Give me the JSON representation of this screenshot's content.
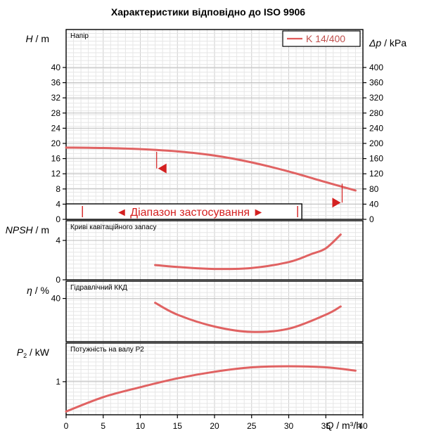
{
  "chart_data": {
    "type": "line",
    "title": "Характеристики відповідно до ISO 9906",
    "legend": {
      "label": "K 14/400",
      "position": "top-right",
      "color": "#e05a5a"
    },
    "series_color": "#e06262",
    "range_color": "#d42020",
    "x": {
      "label": "Q",
      "unit": "m³/h",
      "lim": [
        0,
        40
      ],
      "ticks": [
        0,
        5,
        10,
        15,
        20,
        25,
        30,
        35,
        40
      ],
      "tick_labels": [
        "0",
        "5",
        "10",
        "15",
        "20",
        "25",
        "30",
        "35",
        "40"
      ]
    },
    "panels": [
      {
        "id": "head",
        "panel_label": "Напір",
        "ylabel": "H",
        "yunit": "m",
        "ylim": [
          0,
          50
        ],
        "yticks": [
          0,
          4,
          8,
          12,
          16,
          20,
          24,
          28,
          32,
          36,
          40
        ],
        "ytick_labels": [
          "0",
          "4",
          "8",
          "12",
          "16",
          "20",
          "24",
          "28",
          "32",
          "36",
          "40"
        ],
        "right_label": "Δp",
        "right_unit": "kPa",
        "right_ticks": [
          0,
          40,
          80,
          120,
          160,
          200,
          240,
          280,
          320,
          360,
          400
        ],
        "right_tick_labels": [
          "0",
          "40",
          "80",
          "120",
          "160",
          "200",
          "240",
          "280",
          "320",
          "360",
          "400"
        ],
        "right_factor": 0.1,
        "x": [
          0,
          5,
          10,
          15,
          20,
          25,
          30,
          35,
          39
        ],
        "y": [
          18.9,
          18.8,
          18.5,
          17.9,
          16.8,
          15.0,
          12.6,
          9.8,
          7.6
        ],
        "markers": [
          {
            "x": 12.2,
            "y_top": 17.8,
            "y_tip": 13.4,
            "dir": "left"
          },
          {
            "x": 37.2,
            "y_top": 9.4,
            "y_tip": 4.4,
            "dir": "right"
          }
        ],
        "operating_range": {
          "label": "◄ Діапазон застосування ►",
          "x_start": 2.2,
          "x_end": 31.2
        }
      },
      {
        "id": "npsh",
        "panel_label": "Криві кавітаційного запасу",
        "ylabel": "NPSH",
        "yunit": "m",
        "ylim": [
          0,
          6
        ],
        "yticks": [
          0,
          4
        ],
        "ytick_labels": [
          "0",
          "4"
        ],
        "x": [
          12,
          15,
          20,
          25,
          30,
          33,
          35,
          37
        ],
        "y": [
          1.5,
          1.3,
          1.1,
          1.2,
          1.8,
          2.6,
          3.2,
          4.6
        ]
      },
      {
        "id": "eff",
        "panel_label": "Гідравлічний ККД",
        "ylabel": "η",
        "yunit": "%",
        "ylim": [
          60,
          32
        ],
        "yticks": [
          40
        ],
        "ytick_labels": [
          "40"
        ],
        "x": [
          12,
          15,
          20,
          25,
          30,
          35,
          37
        ],
        "y": [
          42.0,
          47.5,
          53.0,
          55.5,
          54.0,
          47.5,
          43.7
        ]
      },
      {
        "id": "power",
        "panel_label": "Потужність на валу P2",
        "ylabel": "P",
        "ylabel_sub": "2",
        "yunit": "kW",
        "ylim": [
          0.7,
          1.35
        ],
        "yticks": [
          1
        ],
        "ytick_labels": [
          "1"
        ],
        "x": [
          0,
          5,
          10,
          15,
          20,
          25,
          30,
          35,
          39
        ],
        "y": [
          0.73,
          0.86,
          0.95,
          1.03,
          1.09,
          1.13,
          1.14,
          1.13,
          1.1
        ]
      }
    ]
  }
}
